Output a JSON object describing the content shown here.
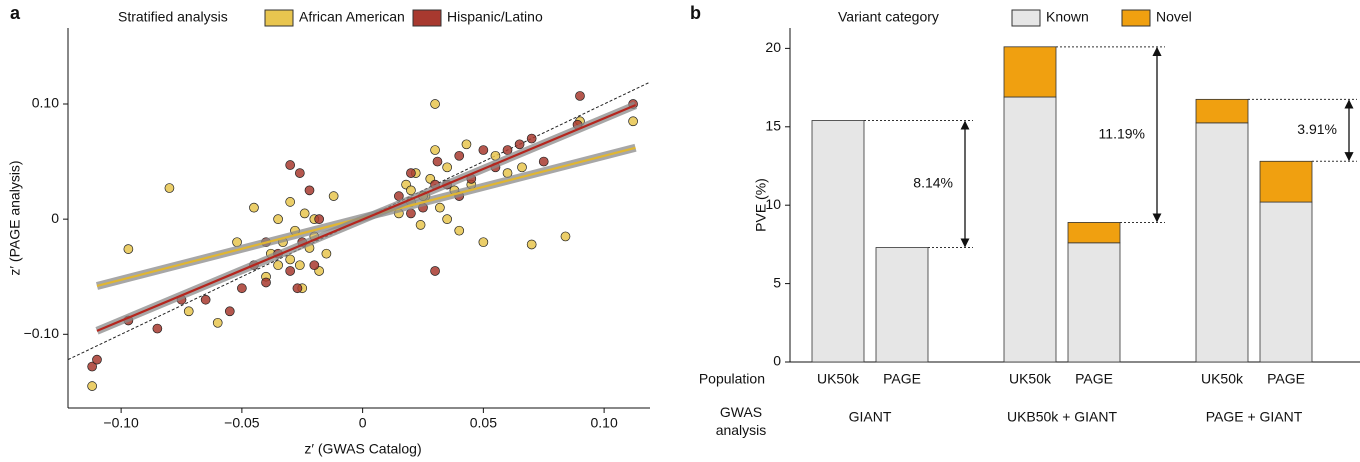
{
  "chart_data": [
    {
      "type": "scatter",
      "label": "a",
      "legend_title": "Stratified analysis",
      "x_label": "z′ (GWAS Catalog)",
      "y_label": "z′ (PAGE analysis)",
      "xlim": [
        -0.122,
        0.119
      ],
      "ylim": [
        -0.164,
        0.166
      ],
      "xticks": [
        {
          "value": -0.1,
          "label": "−0.10"
        },
        {
          "value": -0.05,
          "label": "−0.05"
        },
        0,
        0.05,
        {
          "value": 0.1,
          "label": "0.10"
        }
      ],
      "yticks": [
        {
          "value": -0.1,
          "label": "−0.10"
        },
        0,
        {
          "value": 0.1,
          "label": "0.10"
        }
      ],
      "identity_line": true,
      "series": [
        {
          "name": "African American",
          "color": "#e8c54f",
          "line_color": "#e0b633",
          "x": [
            -0.112,
            -0.097,
            -0.08,
            -0.072,
            -0.06,
            -0.052,
            -0.045,
            -0.04,
            -0.038,
            -0.035,
            -0.033,
            -0.03,
            -0.028,
            -0.026,
            -0.024,
            -0.022,
            -0.02,
            -0.018,
            -0.015,
            -0.012,
            -0.03,
            -0.025,
            -0.035,
            -0.02,
            0.015,
            0.018,
            0.02,
            0.022,
            0.024,
            0.026,
            0.028,
            0.03,
            0.032,
            0.035,
            0.038,
            0.04,
            0.045,
            0.05,
            0.055,
            0.06,
            0.07,
            0.084,
            0.09,
            0.112,
            0.03,
            0.025,
            0.02,
            0.035,
            0.043,
            0.066
          ],
          "values": [
            -0.145,
            -0.026,
            0.027,
            -0.08,
            -0.09,
            -0.02,
            0.01,
            -0.05,
            -0.03,
            0.0,
            -0.02,
            -0.035,
            -0.01,
            -0.04,
            0.005,
            -0.025,
            -0.015,
            -0.045,
            -0.03,
            0.02,
            0.015,
            -0.06,
            -0.04,
            0.0,
            0.005,
            0.03,
            0.015,
            0.04,
            -0.005,
            0.02,
            0.035,
            0.1,
            0.01,
            0.045,
            0.025,
            -0.01,
            0.03,
            -0.02,
            0.055,
            0.04,
            -0.022,
            -0.015,
            0.085,
            0.085,
            0.06,
            0.02,
            0.025,
            0.0,
            0.065,
            0.045
          ],
          "trend": {
            "x": [
              -0.11,
              0.113
            ],
            "y": [
              -0.058,
              0.062
            ]
          }
        },
        {
          "name": "Hispanic/Latino",
          "color": "#a8392f",
          "line_color": "#b5261e",
          "x": [
            -0.112,
            -0.11,
            -0.097,
            -0.085,
            -0.075,
            -0.065,
            -0.055,
            -0.05,
            -0.045,
            -0.04,
            -0.035,
            -0.03,
            -0.027,
            -0.025,
            -0.022,
            -0.02,
            -0.018,
            -0.03,
            -0.04,
            -0.026,
            0.015,
            0.02,
            0.025,
            0.03,
            0.031,
            0.035,
            0.04,
            0.045,
            0.05,
            0.055,
            0.06,
            0.065,
            0.07,
            0.075,
            0.09,
            0.089,
            0.112,
            0.03,
            0.04,
            0.02
          ],
          "values": [
            -0.128,
            -0.122,
            -0.088,
            -0.095,
            -0.07,
            -0.07,
            -0.08,
            -0.06,
            -0.04,
            -0.055,
            -0.03,
            0.047,
            -0.06,
            -0.02,
            0.025,
            -0.04,
            0.0,
            -0.045,
            -0.02,
            0.04,
            0.02,
            0.04,
            0.01,
            -0.045,
            0.05,
            0.03,
            0.055,
            0.035,
            0.06,
            0.045,
            0.06,
            0.065,
            0.07,
            0.05,
            0.107,
            0.082,
            0.1,
            0.03,
            0.02,
            0.005
          ],
          "trend": {
            "x": [
              -0.11,
              0.113
            ],
            "y": [
              -0.097,
              0.099
            ]
          }
        }
      ]
    },
    {
      "type": "stacked_bar",
      "label": "b",
      "legend_title": "Variant category",
      "y_label": "PVE (%)",
      "row_labels": [
        "Population",
        "GWAS analysis"
      ],
      "categories": [
        "UK50k",
        "PAGE",
        "UK50k",
        "PAGE",
        "UK50k",
        "PAGE"
      ],
      "groups": [
        "GIANT",
        "UKB50k + GIANT",
        "PAGE + GIANT"
      ],
      "ylim": [
        0,
        21.3
      ],
      "yticks": [
        0,
        5,
        10,
        15,
        20
      ],
      "series": [
        {
          "name": "Known",
          "color": "#e6e6e6",
          "values": [
            15.4,
            7.3,
            16.9,
            7.6,
            15.25,
            10.2
          ]
        },
        {
          "name": "Novel",
          "color": "#f0a010",
          "values": [
            0,
            0,
            3.2,
            1.3,
            1.5,
            2.6
          ]
        }
      ],
      "differences": [
        "8.14%",
        "11.19%",
        "3.91%"
      ]
    }
  ]
}
